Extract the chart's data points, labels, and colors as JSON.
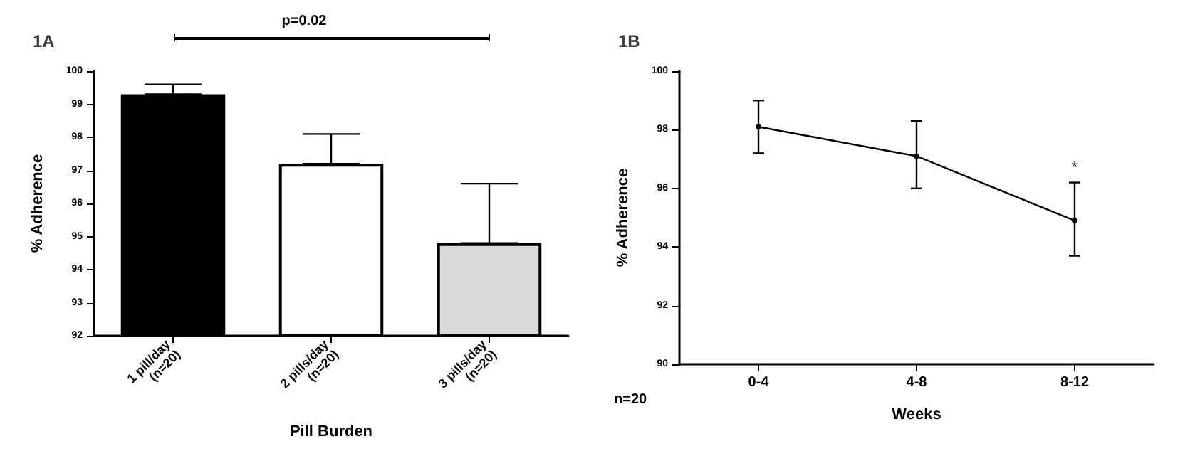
{
  "chart_data": [
    {
      "type": "bar",
      "title": "1A",
      "xlabel": "Pill Burden",
      "ylabel": "% Adherence",
      "categories": [
        "1 pill/day\n(n=20)",
        "2 pills/day\n(n=20)",
        "3 pills/day\n(n=20)"
      ],
      "values": [
        99.3,
        97.2,
        94.8
      ],
      "colors": [
        "#000000",
        "#ffffff",
        "#d9d9d9"
      ],
      "errors": [
        [
          99.3,
          99.6
        ],
        [
          97.2,
          98.1
        ],
        [
          94.8,
          96.6
        ]
      ],
      "ylim": [
        92,
        100
      ],
      "yticks": [
        92,
        93,
        94,
        95,
        96,
        97,
        98,
        99,
        100
      ],
      "grid": false,
      "annotations": [
        "p=0.02"
      ]
    },
    {
      "type": "line",
      "title": "1B",
      "xlabel": "Weeks",
      "ylabel": "% Adherence",
      "categories": [
        "0-4",
        "4-8",
        "8-12"
      ],
      "values": [
        98.1,
        97.1,
        94.9
      ],
      "color": "#000000",
      "marker": "circle",
      "line_style": "solid",
      "errors": [
        [
          97.2,
          99.0
        ],
        [
          96.0,
          98.3
        ],
        [
          93.7,
          96.2
        ]
      ],
      "ylim": [
        90,
        100
      ],
      "yticks": [
        90,
        92,
        94,
        96,
        98,
        100
      ],
      "grid": false,
      "annotations": [
        {
          "text": "*",
          "x": "8-12",
          "y": 96.2
        },
        "n=20"
      ]
    }
  ]
}
